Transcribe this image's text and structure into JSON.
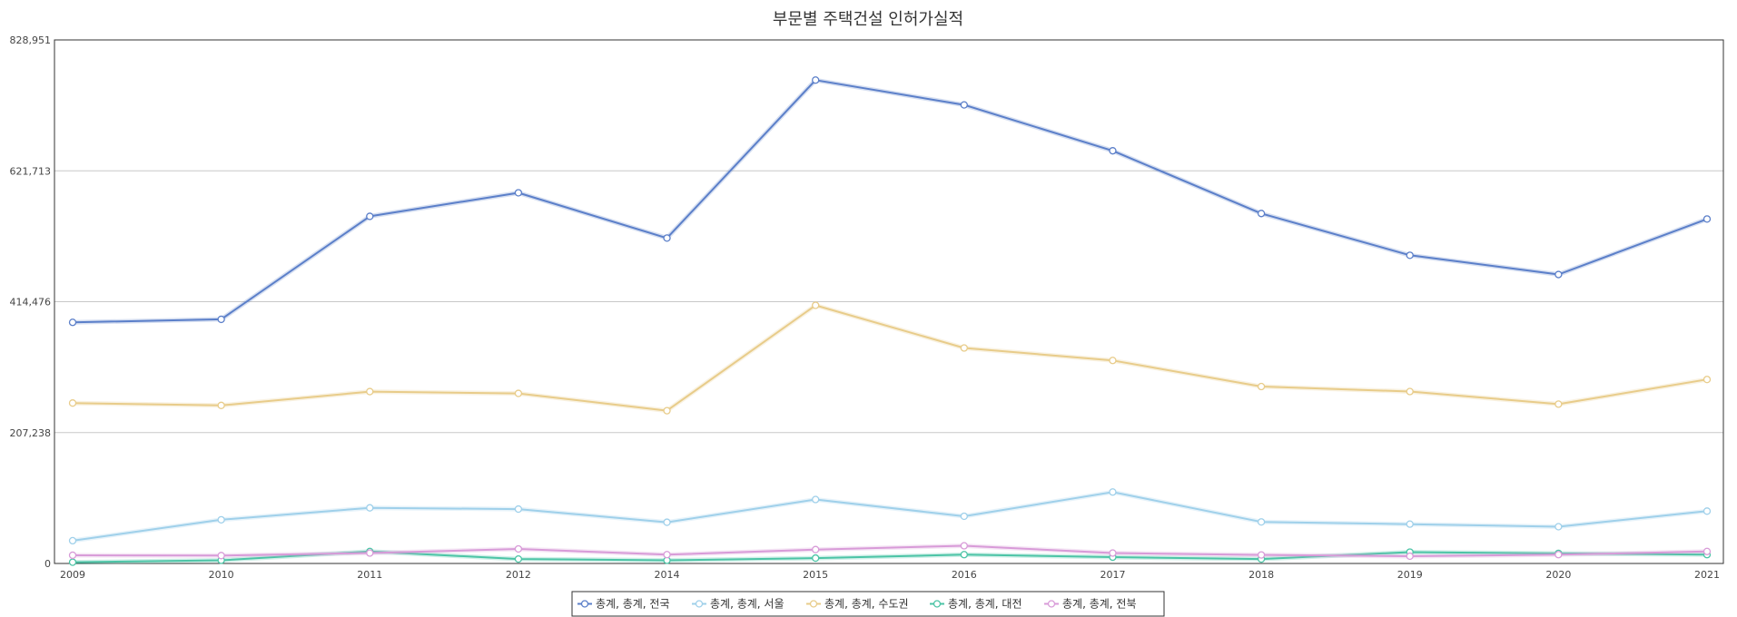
{
  "chart_data": {
    "type": "line",
    "title": "부문별 주택건설 인허가실적",
    "x": [
      "2009",
      "2010",
      "2011",
      "2012",
      "2014",
      "2015",
      "2016",
      "2017",
      "2018",
      "2019",
      "2020",
      "2021"
    ],
    "yticks": [
      "0",
      "207,238",
      "414,476",
      "621,713",
      "828,951"
    ],
    "ylim": [
      0,
      828951
    ],
    "grid": true,
    "legend_position": "bottom",
    "series": [
      {
        "name": "총계, 총계, 전국",
        "color": "#5b7fc9",
        "values": [
          381787,
          386542,
          549594,
          586884,
          515251,
          765328,
          726048,
          653441,
          554136,
          487975,
          457514,
          545412
        ]
      },
      {
        "name": "총계, 총계, 서울",
        "color": "#9fd0ea",
        "values": [
          36090,
          69190,
          88060,
          86123,
          65249,
          101235,
          74739,
          113131,
          65751,
          62272,
          58181,
          82860
        ]
      },
      {
        "name": "총계, 총계, 수도권",
        "color": "#e8cc8a",
        "values": [
          254000,
          250253,
          272156,
          269290,
          241889,
          408773,
          341162,
          321402,
          280097,
          272226,
          252301,
          291319
        ]
      },
      {
        "name": "총계, 총계, 대전",
        "color": "#4cc4a6",
        "values": [
          2000,
          5000,
          19000,
          7000,
          5000,
          8500,
          14000,
          10000,
          7000,
          18000,
          16000,
          14000
        ]
      },
      {
        "name": "총계, 총계, 전북",
        "color": "#d89bd8",
        "values": [
          13000,
          12500,
          16500,
          23000,
          14000,
          22000,
          28000,
          16500,
          13500,
          11500,
          14000,
          19000
        ]
      }
    ]
  }
}
